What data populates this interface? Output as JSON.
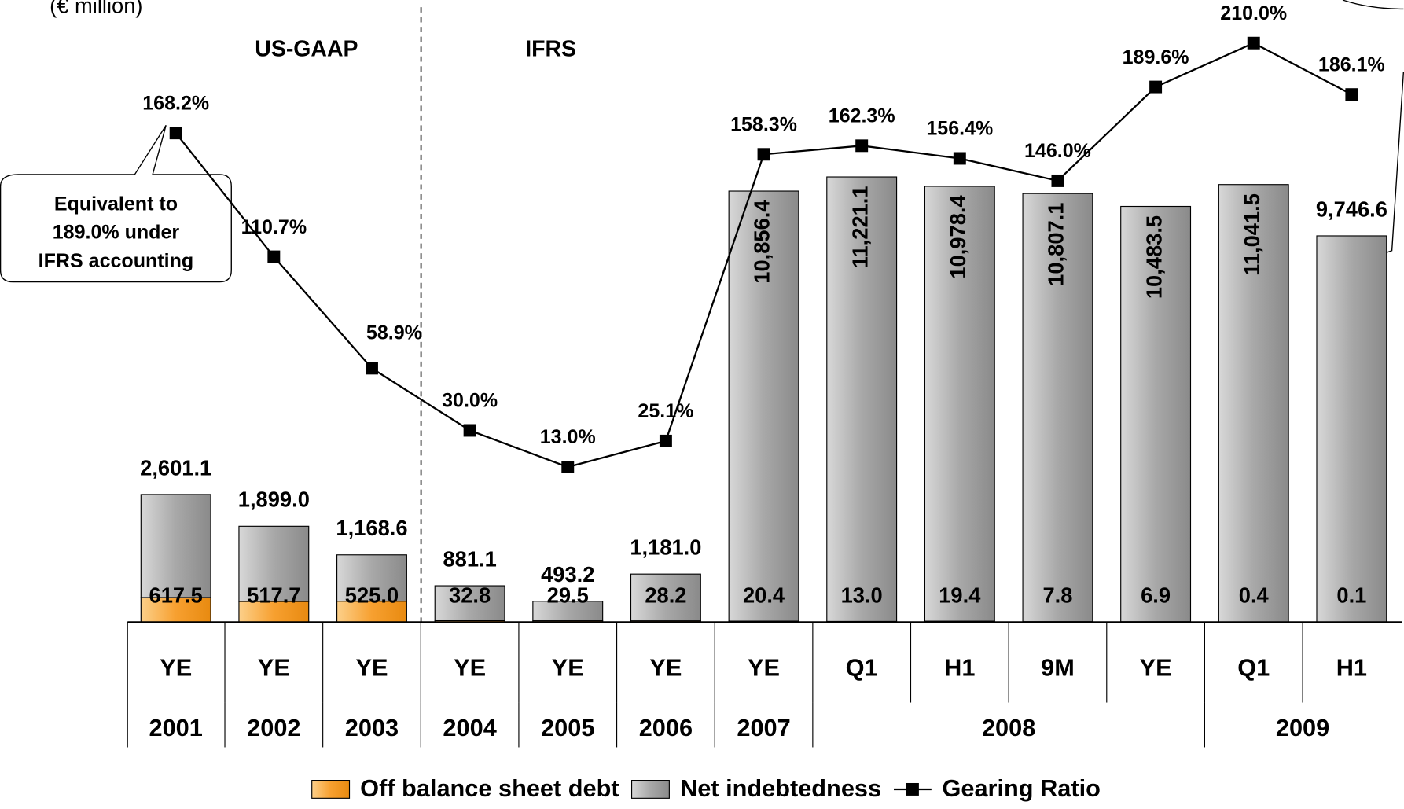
{
  "chart_data": {
    "type": "stacked-bar-line",
    "unit_label": "(€ million)",
    "regions": [
      "US-GAAP",
      "IFRS"
    ],
    "annotation": [
      "Equivalent to",
      "189.0%  under",
      "IFRS accounting"
    ],
    "categories": [
      "YE",
      "YE",
      "YE",
      "YE",
      "YE",
      "YE",
      "YE",
      "Q1",
      "H1",
      "9M",
      "YE",
      "Q1",
      "H1"
    ],
    "groups": [
      {
        "label": "2001",
        "count": 1
      },
      {
        "label": "2002",
        "count": 1
      },
      {
        "label": "2003",
        "count": 1
      },
      {
        "label": "2004",
        "count": 1
      },
      {
        "label": "2005",
        "count": 1
      },
      {
        "label": "2006",
        "count": 1
      },
      {
        "label": "2007",
        "count": 1
      },
      {
        "label": "2008",
        "count": 4
      },
      {
        "label": "2009",
        "count": 2
      }
    ],
    "series": [
      {
        "name": "Off balance sheet debt",
        "color": "#f7a030",
        "values": [
          617.5,
          517.7,
          525.0,
          32.8,
          29.5,
          28.2,
          20.4,
          13.0,
          19.4,
          7.8,
          6.9,
          0.4,
          0.1
        ],
        "value_labels": [
          "617.5",
          "517.7",
          "525.0",
          "32.8",
          "29.5",
          "28.2",
          "20.4",
          "13.0",
          "19.4",
          "7.8",
          "6.9",
          "0.4",
          "0.1"
        ]
      },
      {
        "name": "Net indebtedness",
        "color": "#a8a8a8",
        "values": [
          2601.1,
          1899.0,
          1168.6,
          881.1,
          493.2,
          1181.0,
          10856.4,
          11221.1,
          10978.4,
          10807.1,
          10483.5,
          11041.5,
          9746.6
        ],
        "value_labels": [
          "2,601.1",
          "1,899.0",
          "1,168.6",
          "881.1",
          "493.2",
          "1,181.0",
          "10,856.4",
          "11,221.1",
          "10,978.4",
          "10,807.1",
          "10,483.5",
          "11,041.5",
          "9,746.6"
        ]
      },
      {
        "name": "Gearing Ratio",
        "color": "#000000",
        "axis": "y2",
        "values": [
          168.2,
          110.7,
          58.9,
          30.0,
          13.0,
          25.1,
          158.3,
          162.3,
          156.4,
          146.0,
          189.6,
          210.0,
          186.1
        ],
        "value_labels": [
          "168.2%",
          "110.7%",
          "58.9%",
          "30.0%",
          "13.0%",
          "25.1%",
          "158.3%",
          "162.3%",
          "156.4%",
          "146.0%",
          "189.6%",
          "210.0%",
          "186.1%"
        ]
      }
    ],
    "ylim": [
      0,
      15700
    ],
    "y2lim": [
      -59,
      230
    ],
    "legend": "bottom"
  }
}
